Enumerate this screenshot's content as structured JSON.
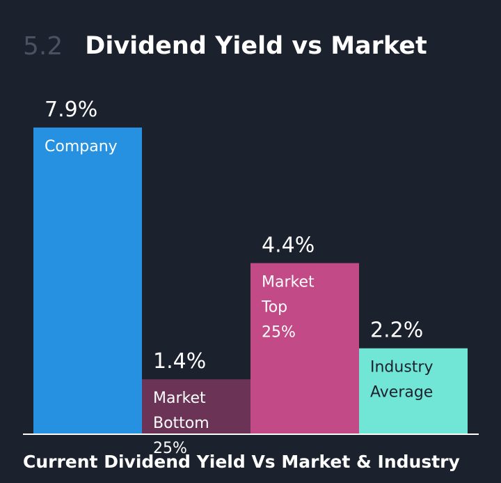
{
  "header": {
    "section_number": "5.2",
    "title": "Dividend Yield vs Market"
  },
  "caption": "Current Dividend Yield Vs Market & Industry",
  "colors": {
    "background": "#1b222d",
    "baseline": "#ffffff",
    "value_text": "#ffffff"
  },
  "chart_data": {
    "type": "bar",
    "title": "Dividend Yield vs Market",
    "xlabel": "",
    "ylabel": "",
    "ylim": [
      0,
      7.9
    ],
    "grid": false,
    "legend": "none",
    "categories": [
      "Company",
      "Market Bottom 25%",
      "Market Top 25%",
      "Industry Average"
    ],
    "values": [
      7.9,
      1.4,
      4.4,
      2.2
    ],
    "value_labels": [
      "7.9%",
      "1.4%",
      "4.4%",
      "2.2%"
    ],
    "bar_labels": [
      [
        "Company"
      ],
      [
        "Market",
        "Bottom",
        "25%"
      ],
      [
        "Market",
        "Top",
        "25%"
      ],
      [
        "Industry",
        "Average"
      ]
    ],
    "bar_colors": [
      "#2591e0",
      "#6b3457",
      "#c24a87",
      "#71e6d6"
    ],
    "label_colors": [
      "#ffffff",
      "#ffffff",
      "#ffffff",
      "#1b222d"
    ]
  }
}
